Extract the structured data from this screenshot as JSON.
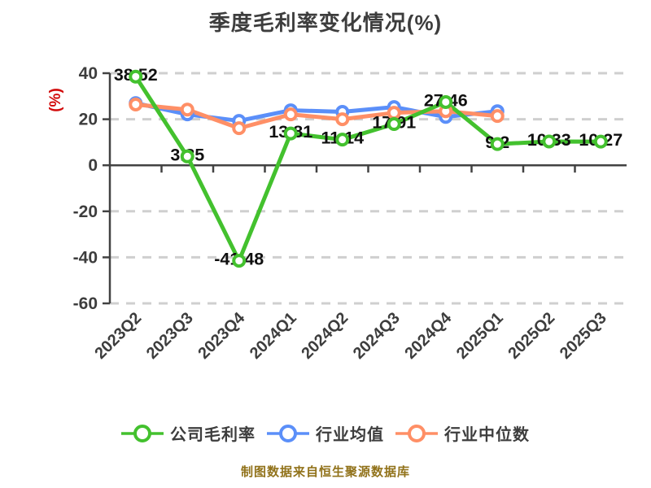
{
  "chart_data": {
    "type": "line",
    "title": "季度毛利率变化情况(%)",
    "unit_label": "(%)",
    "footer": "制图数据来自恒生聚源数据库",
    "categories": [
      "2023Q2",
      "2023Q3",
      "2023Q4",
      "2024Q1",
      "2024Q2",
      "2024Q3",
      "2024Q4",
      "2025Q1",
      "2025Q2",
      "2025Q3"
    ],
    "series": [
      {
        "name": "公司毛利率",
        "color": "#43c12e",
        "values": [
          38.52,
          3.85,
          -41.48,
          13.81,
          11.14,
          17.91,
          27.46,
          9.2,
          10.33,
          10.27
        ],
        "labels": [
          "38.52",
          "3.85",
          "-41.48",
          "13.81",
          "11.14",
          "17.91",
          "27.46",
          "9.2",
          "10.33",
          "10.27"
        ],
        "show_labels": true
      },
      {
        "name": "行业均值",
        "color": "#5b8ff9",
        "values": [
          27.0,
          22.1,
          19.3,
          23.9,
          23.2,
          25.3,
          21.0,
          23.5
        ],
        "labels": [],
        "show_labels": false
      },
      {
        "name": "行业中位数",
        "color": "#ff8f66",
        "values": [
          26.4,
          24.2,
          16.1,
          22.1,
          20.0,
          22.8,
          23.5,
          21.4
        ],
        "labels": [],
        "show_labels": false
      }
    ],
    "y_axis": {
      "ticks": [
        40,
        20,
        0,
        -20,
        -40,
        -60
      ],
      "min": -60,
      "max": 40
    },
    "x_axis": {
      "label_rotation_deg": -45
    },
    "legend_position": "bottom",
    "grid": {
      "horizontal_dashed": true,
      "zero_axis_solid": true
    },
    "colors": {
      "axis": "#424242",
      "gridline": "#cfcfcf",
      "tick_text": "#3d3d3d",
      "data_label": "#101010",
      "unit_label": "#d20b0b",
      "footer_text": "#91721a"
    }
  }
}
